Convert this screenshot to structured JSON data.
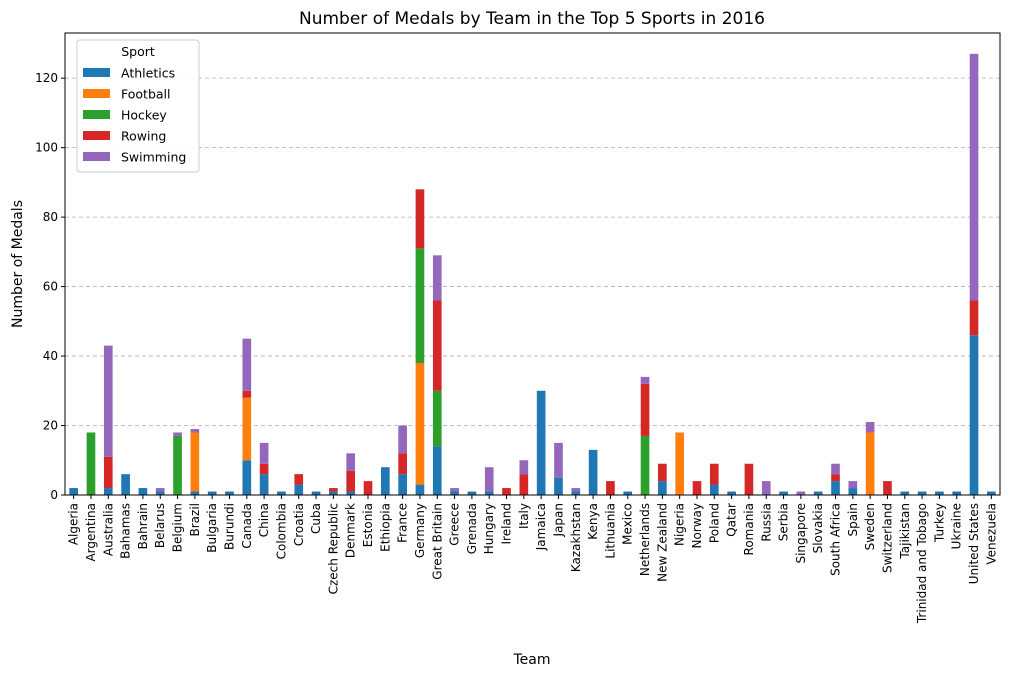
{
  "chart_data": {
    "type": "bar",
    "stacked": true,
    "title": "Number of Medals by Team in the Top 5 Sports in 2016",
    "xlabel": "Team",
    "ylabel": "Number of Medals",
    "ylim": [
      0,
      133
    ],
    "yticks": [
      0,
      20,
      40,
      60,
      80,
      100,
      120
    ],
    "grid": "y-dashed",
    "legend": {
      "title": "Sport",
      "placement": "top-left"
    },
    "categories": [
      "Algeria",
      "Argentina",
      "Australia",
      "Bahamas",
      "Bahrain",
      "Belarus",
      "Belgium",
      "Brazil",
      "Bulgaria",
      "Burundi",
      "Canada",
      "China",
      "Colombia",
      "Croatia",
      "Cuba",
      "Czech Republic",
      "Denmark",
      "Estonia",
      "Ethiopia",
      "France",
      "Germany",
      "Great Britain",
      "Greece",
      "Grenada",
      "Hungary",
      "Ireland",
      "Italy",
      "Jamaica",
      "Japan",
      "Kazakhstan",
      "Kenya",
      "Lithuania",
      "Mexico",
      "Netherlands",
      "New Zealand",
      "Nigeria",
      "Norway",
      "Poland",
      "Qatar",
      "Romania",
      "Russia",
      "Serbia",
      "Singapore",
      "Slovakia",
      "South Africa",
      "Spain",
      "Sweden",
      "Switzerland",
      "Tajikistan",
      "Trinidad and Tobago",
      "Turkey",
      "Ukraine",
      "United States",
      "Venezuela"
    ],
    "series": [
      {
        "name": "Athletics",
        "color": "#1f77b4",
        "values": [
          2,
          0,
          2,
          6,
          2,
          1,
          0,
          1,
          1,
          1,
          10,
          6,
          1,
          3,
          1,
          1,
          1,
          0,
          8,
          6,
          3,
          14,
          1,
          1,
          1,
          0,
          0,
          30,
          5,
          1,
          13,
          0,
          1,
          0,
          4,
          0,
          0,
          3,
          1,
          0,
          0,
          1,
          0,
          1,
          4,
          2,
          0,
          0,
          1,
          1,
          1,
          1,
          46,
          1
        ]
      },
      {
        "name": "Football",
        "color": "#ff7f0e",
        "values": [
          0,
          0,
          0,
          0,
          0,
          0,
          0,
          17,
          0,
          0,
          18,
          0,
          0,
          0,
          0,
          0,
          0,
          0,
          0,
          0,
          35,
          0,
          0,
          0,
          0,
          0,
          0,
          0,
          0,
          0,
          0,
          0,
          0,
          0,
          0,
          18,
          0,
          0,
          0,
          0,
          0,
          0,
          0,
          0,
          0,
          0,
          18,
          0,
          0,
          0,
          0,
          0,
          0,
          0
        ]
      },
      {
        "name": "Hockey",
        "color": "#2ca02c",
        "values": [
          0,
          18,
          0,
          0,
          0,
          0,
          17,
          0,
          0,
          0,
          0,
          0,
          0,
          0,
          0,
          0,
          0,
          0,
          0,
          0,
          33,
          16,
          0,
          0,
          0,
          0,
          0,
          0,
          0,
          0,
          0,
          0,
          0,
          17,
          0,
          0,
          0,
          0,
          0,
          0,
          0,
          0,
          0,
          0,
          0,
          0,
          0,
          0,
          0,
          0,
          0,
          0,
          0,
          0
        ]
      },
      {
        "name": "Rowing",
        "color": "#d62728",
        "values": [
          0,
          0,
          9,
          0,
          0,
          0,
          0,
          0,
          0,
          0,
          2,
          3,
          0,
          3,
          0,
          1,
          6,
          4,
          0,
          6,
          17,
          26,
          0,
          0,
          0,
          2,
          6,
          0,
          0,
          0,
          0,
          4,
          0,
          15,
          5,
          0,
          4,
          6,
          0,
          9,
          0,
          0,
          0,
          0,
          2,
          0,
          0,
          4,
          0,
          0,
          0,
          0,
          10,
          0
        ]
      },
      {
        "name": "Swimming",
        "color": "#9467bd",
        "values": [
          0,
          0,
          32,
          0,
          0,
          1,
          1,
          1,
          0,
          0,
          15,
          6,
          0,
          0,
          0,
          0,
          5,
          0,
          0,
          8,
          0,
          13,
          1,
          0,
          7,
          0,
          4,
          0,
          10,
          1,
          0,
          0,
          0,
          2,
          0,
          0,
          0,
          0,
          0,
          0,
          4,
          0,
          1,
          0,
          3,
          2,
          3,
          0,
          0,
          0,
          0,
          0,
          71,
          0
        ]
      }
    ]
  }
}
